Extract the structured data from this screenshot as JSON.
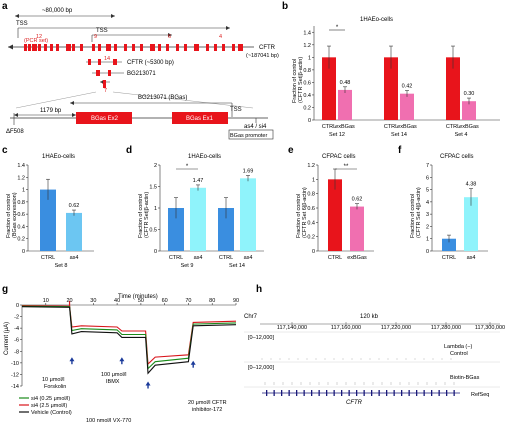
{
  "panels": {
    "a": {
      "label": "a",
      "span": "~80,000 bp",
      "tss1": "TSS",
      "tss2": "TSS",
      "pcr_set": "(PCR set)",
      "exon_nums": [
        "12",
        "9",
        "6",
        "4",
        "14",
        "8",
        "7"
      ],
      "cftr_gene": "CFTR",
      "cftr_len": "(~187041 bp)",
      "cftr_short": "CFTR (~5300 bp)",
      "bg_gene": "BG213071",
      "bg_detail": "BG213071 (BGas)",
      "bp1179": "1179 bp",
      "tss3": "TSS",
      "delta": "ΔF508",
      "ex2": "BGas Ex2",
      "ex1": "BGas Ex1",
      "as4si4": "as4 / si4",
      "promoter": "BGas promoter"
    },
    "b": {
      "label": "b",
      "title": "1HAEo-cells",
      "ylabel": "Fraction of control\n(CFTR Set|β-actin)",
      "sig": "*"
    },
    "c": {
      "label": "c",
      "title": "1HAEo-cells",
      "ylabel": "Fraction of control\n(BGas expression)"
    },
    "d": {
      "label": "d",
      "title": "1HAEo-cells",
      "ylabel": "Fraction of control\n(CFTR Set|β-actin)",
      "sig": "*"
    },
    "e": {
      "label": "e",
      "title": "CFPAC cells",
      "ylabel": "Fraction of control\n(CFTR Set 6|β-actin)",
      "sig": "**"
    },
    "f": {
      "label": "f",
      "title": "CFPAC cells",
      "ylabel": "Fraction of control\n(CFTR Set 4|β-actin)"
    },
    "g": {
      "label": "g",
      "xlabel": "Time (minutes)",
      "ylabel": "Current (μA)",
      "ann1": [
        "10 μmol/l",
        "Forskolin"
      ],
      "ann2": [
        "100 μmol/l",
        "IBMX"
      ],
      "ann3": "100 nmol/l VX-770",
      "ann4": [
        "20 μmol/l CFTR",
        "inhibitor-172"
      ],
      "legend": [
        "si4 (0.25 μmol/l)",
        "si4 (2.5 μmol/l)",
        "Vehicle (Control)"
      ]
    },
    "h": {
      "label": "h",
      "chr": "Chr7",
      "scale": "120 kb",
      "coords": [
        "117,140,000",
        "117,160,000",
        "117,220,000",
        "117,280,000",
        "117,300,000"
      ],
      "range1": "[0–12,000]",
      "range2": "[0–12,000]",
      "track1": [
        "Lambda (−)",
        "Control"
      ],
      "track2": "Biotin-BGas",
      "gene": "CFTR",
      "refseq": "RefSeq"
    }
  },
  "chart_data": [
    {
      "panel": "b",
      "type": "bar",
      "title": "1HAEo-cells",
      "ylim": [
        0,
        1.5
      ],
      "yticks": [
        0,
        0.2,
        0.4,
        0.6,
        0.8,
        1,
        1.2,
        1.4
      ],
      "groups": [
        "Set 12",
        "Set 14",
        "Set 4"
      ],
      "categories": [
        "CTRL",
        "exBGas"
      ],
      "series": [
        {
          "name": "CTRL",
          "values": [
            1.0,
            1.0,
            1.0
          ],
          "color": "#e8141b"
        },
        {
          "name": "exBGas",
          "values": [
            0.48,
            0.42,
            0.3
          ],
          "color": "#f06fb0"
        }
      ],
      "labels": [
        "0.48",
        "0.42",
        "0.30"
      ]
    },
    {
      "panel": "c",
      "type": "bar",
      "title": "1HAEo-cells",
      "ylim": [
        0,
        1.4
      ],
      "yticks": [
        0,
        0.2,
        0.4,
        0.6,
        0.8,
        1,
        1.2,
        1.4
      ],
      "groups": [
        "Set 8"
      ],
      "categories": [
        "CTRL",
        "as4"
      ],
      "series": [
        {
          "name": "CTRL",
          "values": [
            1.0
          ],
          "color": "#3a8ee0"
        },
        {
          "name": "as4",
          "values": [
            0.62
          ],
          "color": "#6cc6f2"
        }
      ],
      "labels": [
        "0.62"
      ]
    },
    {
      "panel": "d",
      "type": "bar",
      "title": "1HAEo-cells",
      "ylim": [
        0,
        2.0
      ],
      "yticks": [
        0,
        0.5,
        1,
        1.5,
        2
      ],
      "groups": [
        "Set 9",
        "Set 14"
      ],
      "categories": [
        "CTRL",
        "as4"
      ],
      "series": [
        {
          "name": "CTRL",
          "values": [
            1.0,
            1.0
          ],
          "color": "#3a8ee0"
        },
        {
          "name": "as4",
          "values": [
            1.47,
            1.69
          ],
          "color": "#8ff3fb"
        }
      ],
      "labels": [
        "1.47",
        "1.69"
      ]
    },
    {
      "panel": "e",
      "type": "bar",
      "title": "CFPAC cells",
      "ylim": [
        0,
        1.2
      ],
      "yticks": [
        0,
        0.2,
        0.4,
        0.6,
        0.8,
        1,
        1.2
      ],
      "groups": [
        ""
      ],
      "categories": [
        "CTRL",
        "exBGas"
      ],
      "series": [
        {
          "name": "CTRL",
          "values": [
            1.0
          ],
          "color": "#e8141b"
        },
        {
          "name": "exBGas",
          "values": [
            0.62
          ],
          "color": "#f06fb0"
        }
      ],
      "labels": [
        "0.62"
      ]
    },
    {
      "panel": "f",
      "type": "bar",
      "title": "CFPAC cells",
      "ylim": [
        0,
        7
      ],
      "yticks": [
        0,
        1,
        2,
        3,
        4,
        5,
        6,
        7
      ],
      "groups": [
        ""
      ],
      "categories": [
        "CTRL",
        "as4"
      ],
      "series": [
        {
          "name": "CTRL",
          "values": [
            1.0
          ],
          "color": "#3a8ee0"
        },
        {
          "name": "as4",
          "values": [
            4.38
          ],
          "color": "#8ff3fb"
        }
      ],
      "labels": [
        "4.38"
      ]
    },
    {
      "panel": "g",
      "type": "line",
      "xlabel": "Time (minutes)",
      "ylabel": "Current (μA)",
      "xlim": [
        0,
        90
      ],
      "ylim": [
        -14,
        0
      ],
      "xticks": [
        10,
        20,
        30,
        40,
        50,
        60,
        70,
        80,
        90
      ],
      "yticks": [
        0,
        -2,
        -4,
        -6,
        -8,
        -10,
        -12,
        -14
      ]
    }
  ]
}
